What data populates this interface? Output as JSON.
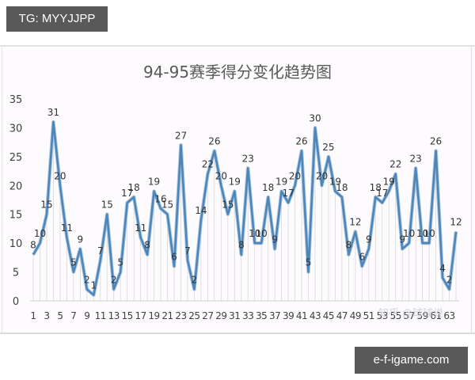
{
  "header": {
    "tg_label": "TG: MYYJJPP"
  },
  "footer": {
    "site_label": "e-f-igame.com"
  },
  "watermark": "知乎 @球球说",
  "colors": {
    "line": "#4f86b8",
    "line_highlight": "#a9c7e3",
    "grid": "#d9d9d9",
    "axis_text": "#404040",
    "title": "#595959",
    "badge_bg": "#595959"
  },
  "chart_data": {
    "type": "line",
    "title": "94-95赛季得分变化趋势图",
    "xlabel": "",
    "ylabel": "",
    "ylim": [
      0,
      35
    ],
    "yticks": [
      0,
      5,
      10,
      15,
      20,
      25,
      30,
      35
    ],
    "x": [
      1,
      2,
      3,
      4,
      5,
      6,
      7,
      8,
      9,
      10,
      11,
      12,
      13,
      14,
      15,
      16,
      17,
      18,
      19,
      20,
      21,
      22,
      23,
      24,
      25,
      26,
      27,
      28,
      29,
      30,
      31,
      32,
      33,
      34,
      35,
      36,
      37,
      38,
      39,
      40,
      41,
      42,
      43,
      44,
      45,
      46,
      47,
      48,
      49,
      50,
      51,
      52,
      53,
      54,
      55,
      56,
      57,
      58,
      59,
      60,
      61,
      62,
      63,
      64
    ],
    "xtick_labels": [
      1,
      3,
      5,
      7,
      9,
      11,
      13,
      15,
      17,
      19,
      21,
      23,
      25,
      27,
      29,
      31,
      33,
      35,
      37,
      39,
      41,
      43,
      45,
      47,
      49,
      51,
      53,
      55,
      57,
      59,
      61,
      63
    ],
    "series": [
      {
        "name": "得分",
        "values": [
          8,
          10,
          15,
          31,
          20,
          11,
          5,
          9,
          2,
          1,
          7,
          15,
          2,
          5,
          17,
          18,
          11,
          8,
          19,
          16,
          15,
          6,
          27,
          7,
          2,
          14,
          22,
          26,
          20,
          15,
          19,
          8,
          23,
          10,
          10,
          18,
          9,
          19,
          17,
          20,
          26,
          5,
          30,
          20,
          25,
          19,
          18,
          8,
          12,
          6,
          9,
          18,
          17,
          19,
          22,
          9,
          10,
          23,
          10,
          10,
          26,
          4,
          2,
          12
        ],
        "data_labels": true,
        "drop_lines": true
      }
    ],
    "grid": false,
    "legend": "none"
  }
}
